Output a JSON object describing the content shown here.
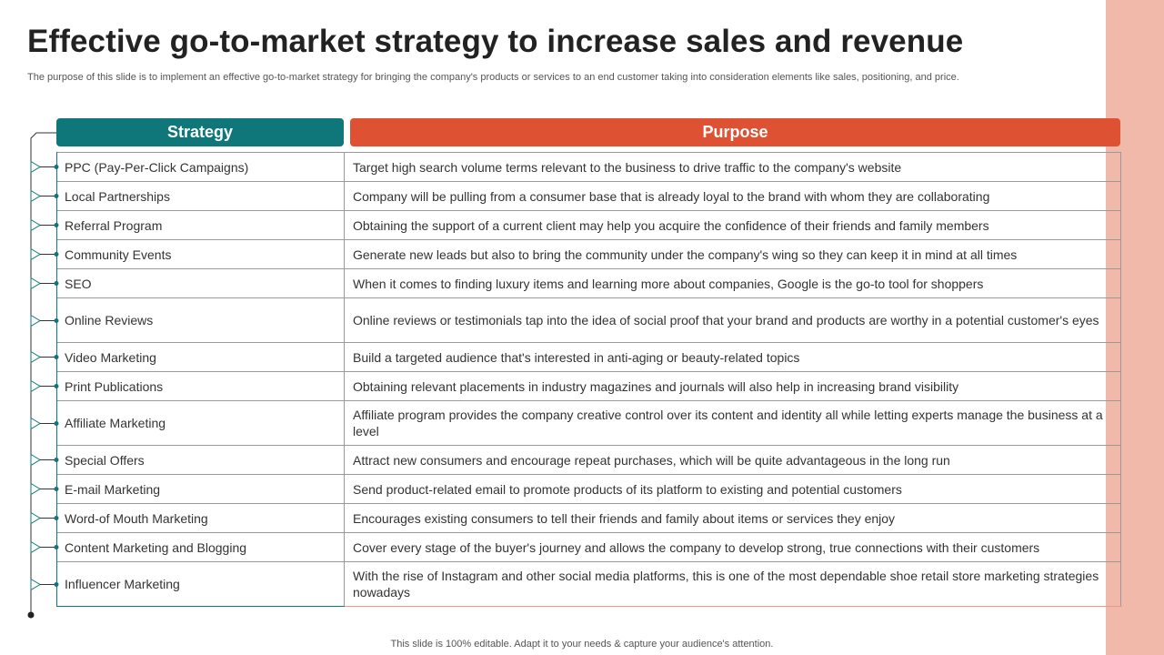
{
  "slide": {
    "title": "Effective go-to-market strategy to increase sales and revenue",
    "subtitle": "The purpose of this slide is to implement an effective go-to-market strategy for bringing the company's products or services to an end customer taking into consideration elements like sales, positioning, and price.",
    "footer": "This slide is 100% editable. Adapt it to your needs & capture your audience's attention."
  },
  "table": {
    "headers": {
      "strategy": "Strategy",
      "purpose": "Purpose"
    },
    "rows": [
      {
        "strategy": "PPC (Pay-Per-Click Campaigns)",
        "purpose": "Target high search volume terms relevant to the business to drive traffic to the company's website"
      },
      {
        "strategy": "Local Partnerships",
        "purpose": "Company will be pulling from a consumer base that is already loyal to the brand with whom they are collaborating"
      },
      {
        "strategy": "Referral Program",
        "purpose": "Obtaining the support of a current client may help you acquire the confidence of their friends and family members"
      },
      {
        "strategy": "Community Events",
        "purpose": "Generate new leads but also to bring the community under the company's wing so they can keep it in mind at all times"
      },
      {
        "strategy": "SEO",
        "purpose": "When it comes to finding luxury items and learning more about companies, Google is the go-to tool for shoppers"
      },
      {
        "strategy": "Online Reviews",
        "purpose": "Online reviews or testimonials tap into the idea of social proof that your brand and products are worthy in a potential customer's eyes"
      },
      {
        "strategy": "Video Marketing",
        "purpose": "Build a targeted audience that's interested in anti-aging or beauty-related topics"
      },
      {
        "strategy": "Print Publications",
        "purpose": "Obtaining relevant placements in industry magazines and journals will also help in increasing brand visibility"
      },
      {
        "strategy": "Affiliate Marketing",
        "purpose": "Affiliate program provides the company creative control over its content and identity all while letting experts manage the business at a level"
      },
      {
        "strategy": "Special Offers",
        "purpose": "Attract new consumers and encourage repeat purchases, which will be quite advantageous in the long run"
      },
      {
        "strategy": "E-mail Marketing",
        "purpose": "Send product-related email to promote products of its platform to existing and potential customers"
      },
      {
        "strategy": "Word-of Mouth Marketing",
        "purpose": "Encourages existing consumers to tell their friends and family about items or services they enjoy"
      },
      {
        "strategy": "Content Marketing  and Blogging",
        "purpose": "Cover every stage of the buyer's journey and allows the company to develop strong, true connections with their customers"
      },
      {
        "strategy": "Influencer Marketing",
        "purpose": "With the rise of Instagram and other social media platforms, this is one of the most dependable shoe retail store marketing strategies nowadays"
      }
    ]
  },
  "colors": {
    "strategy_header": "#0F767A",
    "purpose_header": "#DE5133",
    "side_strip": "#F0B9AA"
  }
}
